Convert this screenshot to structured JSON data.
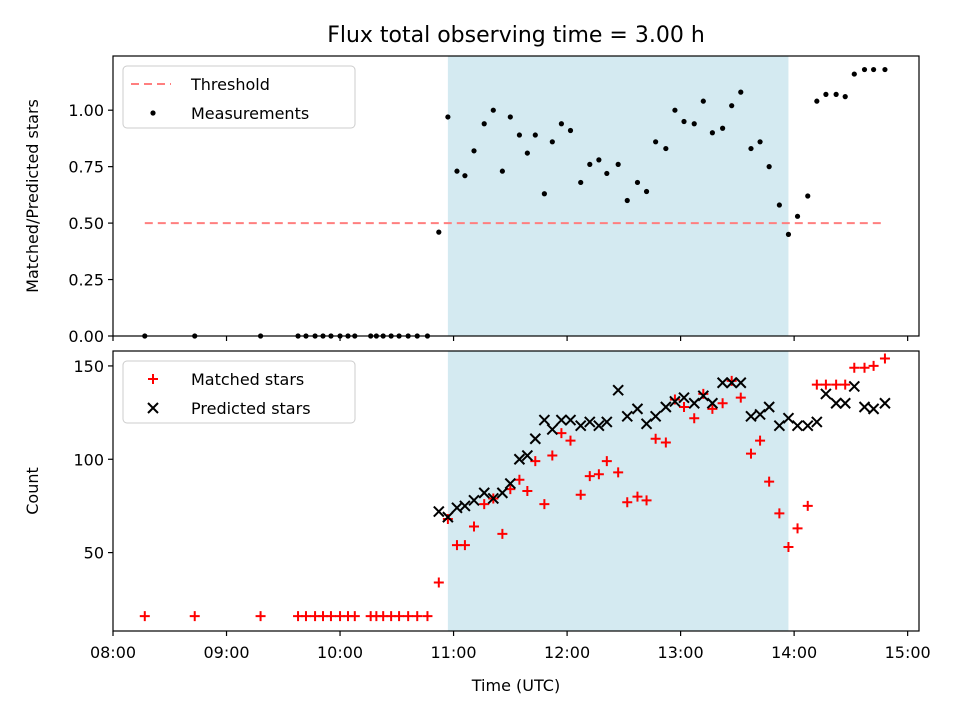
{
  "title": "Flux total observing time = 3.00 h",
  "colors": {
    "threshold": "#ff7f7f",
    "measurements": "#000000",
    "matched": "#ff0000",
    "predicted": "#000000",
    "shade": "#d4eaf1"
  },
  "chart_data": [
    {
      "type": "scatter",
      "panel": "top",
      "ylabel": "Matched/Predicted stars",
      "xlabel": "",
      "ylim": [
        0,
        1.24
      ],
      "yticks": [
        0.0,
        0.25,
        0.5,
        0.75,
        1.0
      ],
      "ytick_labels": [
        "0.00",
        "0.25",
        "0.50",
        "0.75",
        "1.00"
      ],
      "xlim_hours": [
        8.0,
        15.1
      ],
      "shaded_span_hours": [
        10.95,
        13.95
      ],
      "legend": {
        "position": "top-left",
        "entries": [
          "Threshold",
          "Measurements"
        ]
      },
      "series": [
        {
          "name": "Threshold",
          "style": "dashed-line",
          "x": [
            8.28,
            14.8
          ],
          "y": [
            0.5,
            0.5
          ]
        },
        {
          "name": "Measurements",
          "style": "dot",
          "x": [
            8.28,
            8.72,
            9.3,
            9.63,
            9.7,
            9.78,
            9.85,
            9.92,
            10.0,
            10.07,
            10.13,
            10.27,
            10.32,
            10.38,
            10.45,
            10.52,
            10.6,
            10.68,
            10.77,
            10.87,
            10.95,
            11.03,
            11.1,
            11.18,
            11.27,
            11.35,
            11.43,
            11.5,
            11.58,
            11.65,
            11.72,
            11.8,
            11.87,
            11.95,
            12.03,
            12.12,
            12.2,
            12.28,
            12.35,
            12.45,
            12.53,
            12.62,
            12.7,
            12.78,
            12.87,
            12.95,
            13.03,
            13.12,
            13.2,
            13.28,
            13.37,
            13.45,
            13.53,
            13.62,
            13.7,
            13.78,
            13.87,
            13.95,
            14.03,
            14.12,
            14.2,
            14.28,
            14.37,
            14.45,
            14.53,
            14.62,
            14.7,
            14.8
          ],
          "y": [
            0,
            0,
            0,
            0,
            0,
            0,
            0,
            0,
            0,
            0,
            0,
            0,
            0,
            0,
            0,
            0,
            0,
            0,
            0,
            0.46,
            0.97,
            0.73,
            0.71,
            0.82,
            0.94,
            1.0,
            0.73,
            0.97,
            0.89,
            0.81,
            0.89,
            0.63,
            0.86,
            0.94,
            0.91,
            0.68,
            0.76,
            0.78,
            0.72,
            0.76,
            0.6,
            0.68,
            0.64,
            0.86,
            0.83,
            1.0,
            0.95,
            0.94,
            1.04,
            0.9,
            0.92,
            1.02,
            1.08,
            0.83,
            0.86,
            0.75,
            0.58,
            0.45,
            0.53,
            0.62,
            1.04,
            1.07,
            1.07,
            1.06,
            1.16,
            1.18,
            1.18,
            1.18
          ]
        }
      ]
    },
    {
      "type": "scatter",
      "panel": "bottom",
      "ylabel": "Count",
      "xlabel": "Time (UTC)",
      "ylim": [
        8,
        158
      ],
      "yticks": [
        50,
        100,
        150
      ],
      "ytick_labels": [
        "50",
        "100",
        "150"
      ],
      "xlim_hours": [
        8.0,
        15.1
      ],
      "xticks_hours": [
        8,
        9,
        10,
        11,
        12,
        13,
        14,
        15
      ],
      "xtick_labels": [
        "08:00",
        "09:00",
        "10:00",
        "11:00",
        "12:00",
        "13:00",
        "14:00",
        "15:00"
      ],
      "shaded_span_hours": [
        10.95,
        13.95
      ],
      "legend": {
        "position": "top-left",
        "entries": [
          "Matched stars",
          "Predicted stars"
        ]
      },
      "series": [
        {
          "name": "Matched stars",
          "style": "plus",
          "x": [
            8.28,
            8.72,
            9.3,
            9.63,
            9.7,
            9.78,
            9.85,
            9.92,
            10.0,
            10.07,
            10.13,
            10.27,
            10.32,
            10.38,
            10.45,
            10.52,
            10.6,
            10.68,
            10.77,
            10.87,
            10.95,
            11.03,
            11.1,
            11.18,
            11.27,
            11.35,
            11.43,
            11.5,
            11.58,
            11.65,
            11.72,
            11.8,
            11.87,
            11.95,
            12.03,
            12.12,
            12.2,
            12.28,
            12.35,
            12.45,
            12.53,
            12.62,
            12.7,
            12.78,
            12.87,
            12.95,
            13.03,
            13.12,
            13.2,
            13.28,
            13.37,
            13.45,
            13.53,
            13.62,
            13.7,
            13.78,
            13.87,
            13.95,
            14.03,
            14.12,
            14.2,
            14.28,
            14.37,
            14.45,
            14.53,
            14.62,
            14.7,
            14.8
          ],
          "y": [
            16,
            16,
            16,
            16,
            16,
            16,
            16,
            16,
            16,
            16,
            16,
            16,
            16,
            16,
            16,
            16,
            16,
            16,
            16,
            34,
            68,
            54,
            54,
            64,
            76,
            79,
            60,
            84,
            89,
            83,
            99,
            76,
            102,
            114,
            110,
            81,
            91,
            92,
            99,
            93,
            77,
            80,
            78,
            111,
            109,
            132,
            128,
            122,
            135,
            127,
            130,
            142,
            133,
            103,
            110,
            88,
            71,
            53,
            63,
            75,
            140,
            140,
            140,
            140,
            149,
            149,
            150,
            154
          ]
        },
        {
          "name": "Predicted stars",
          "style": "x",
          "x": [
            10.87,
            10.95,
            11.03,
            11.1,
            11.18,
            11.27,
            11.35,
            11.43,
            11.5,
            11.58,
            11.65,
            11.72,
            11.8,
            11.87,
            11.95,
            12.03,
            12.12,
            12.2,
            12.28,
            12.35,
            12.45,
            12.53,
            12.62,
            12.7,
            12.78,
            12.87,
            12.95,
            13.03,
            13.12,
            13.2,
            13.28,
            13.37,
            13.45,
            13.53,
            13.62,
            13.7,
            13.78,
            13.87,
            13.95,
            14.03,
            14.12,
            14.2,
            14.28,
            14.37,
            14.45,
            14.53,
            14.62,
            14.7,
            14.8
          ],
          "y": [
            72,
            69,
            74,
            75,
            78,
            82,
            79,
            82,
            87,
            100,
            102,
            111,
            121,
            116,
            121,
            121,
            118,
            120,
            118,
            120,
            137,
            123,
            127,
            119,
            123,
            128,
            131,
            133,
            130,
            134,
            130,
            141,
            141,
            141,
            123,
            124,
            128,
            118,
            122,
            118,
            118,
            120,
            135,
            130,
            130,
            139,
            128,
            127,
            130
          ]
        }
      ]
    }
  ]
}
